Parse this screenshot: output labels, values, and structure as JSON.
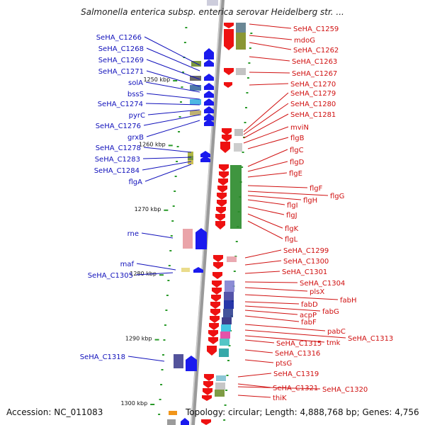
{
  "title": "Salmonella enterica subsp. enterica serovar Heidelberg str. ...",
  "footer": {
    "accession": "Accession: NC_011083",
    "topology": "Topology: circular; Length: 4,888,768 bp; Genes: 4,756"
  },
  "colors": {
    "left_label": "#1111bb",
    "right_label": "#d01010",
    "forward_arrow": "#1a1aee",
    "reverse_arrow": "#ee1111",
    "backbone": "#808080",
    "tick": "#2a9a2a"
  },
  "kbp_marks": [
    {
      "label": "1250 kbp",
      "kbp": 1250
    },
    {
      "label": "1260 kbp",
      "kbp": 1260
    },
    {
      "label": "1270 kbp",
      "kbp": 1270
    },
    {
      "label": "1280 kbp",
      "kbp": 1280
    },
    {
      "label": "1290 kbp",
      "kbp": 1290
    },
    {
      "label": "1300 kbp",
      "kbp": 1300
    }
  ],
  "left_genes": [
    "SeHA_C1266",
    "SeHA_C1268",
    "SeHA_C1269",
    "SeHA_C1271",
    "solA",
    "bssS",
    "SeHA_C1274",
    "pyrC",
    "SeHA_C1276",
    "grxB",
    "SeHA_C1278",
    "SeHA_C1283",
    "SeHA_C1284",
    "flgA",
    "rne",
    "maf",
    "SeHA_C1305",
    "SeHA_C1318"
  ],
  "right_genes": [
    "SeHA_C1259",
    "mdoG",
    "SeHA_C1262",
    "SeHA_C1263",
    "SeHA_C1267",
    "SeHA_C1270",
    "SeHA_C1279",
    "SeHA_C1280",
    "SeHA_C1281",
    "mviN",
    "flgB",
    "flgC",
    "flgD",
    "flgE",
    "flgF",
    "flgG",
    "flgH",
    "flgI",
    "flgJ",
    "flgK",
    "flgL",
    "SeHA_C1299",
    "SeHA_C1300",
    "SeHA_C1301",
    "SeHA_C1304",
    "plsX",
    "fabH",
    "fabD",
    "fabG",
    "acpP",
    "fabF",
    "pabC",
    "SeHA_C1313",
    "tmk",
    "SeHA_C1315",
    "SeHA_C1316",
    "ptsG",
    "SeHA_C1319",
    "SeHA_C1321",
    "SeHA_C1320",
    "thiK"
  ]
}
